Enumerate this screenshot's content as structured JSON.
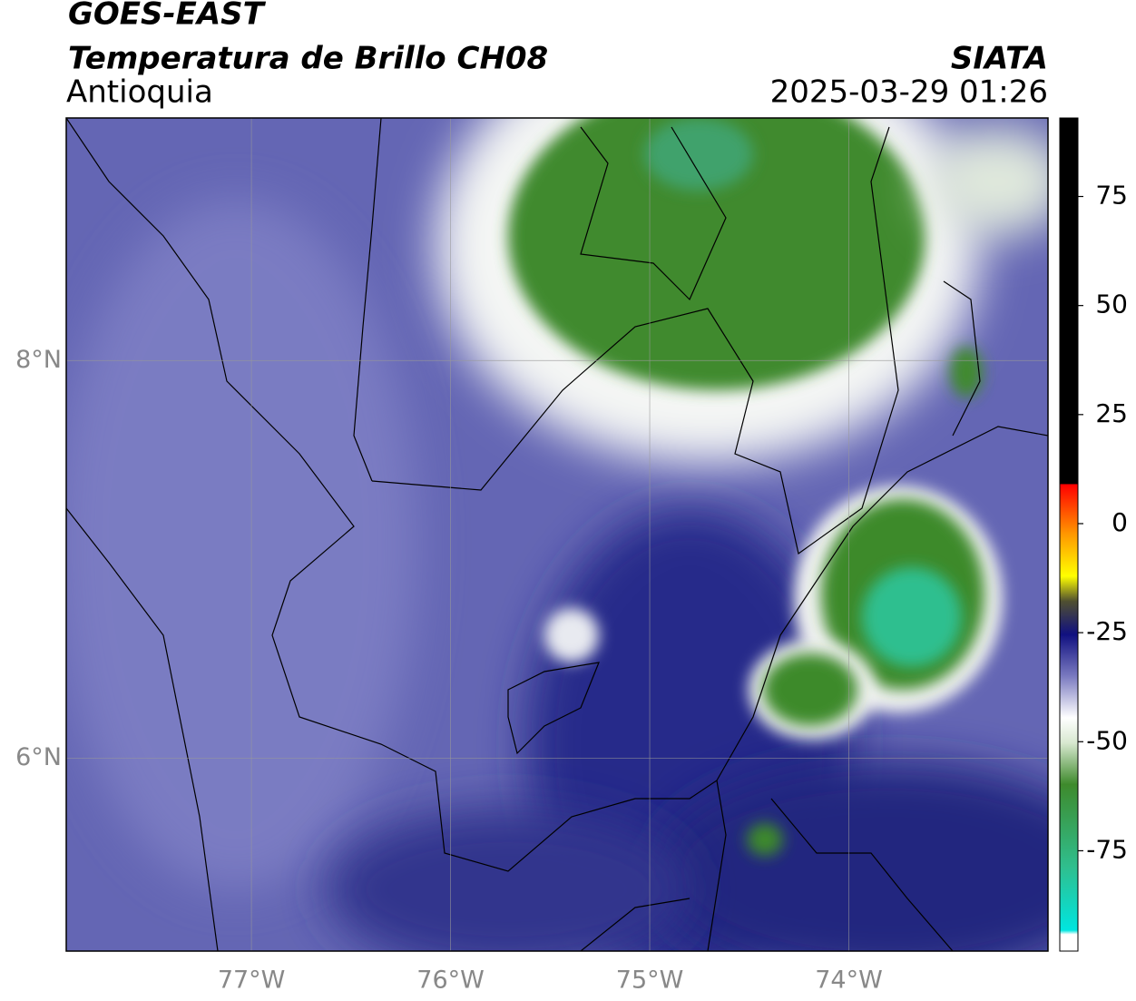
{
  "title": "GOES-EAST",
  "subtitle": "Temperatura de Brillo CH08",
  "region": "Antioquia",
  "source": "SIATA",
  "timestamp": "2025-03-29 01:26",
  "map": {
    "xlim": [
      -77.93,
      -73.0
    ],
    "ylim": [
      5.03,
      9.22
    ],
    "xticks": [
      {
        "value": -77,
        "label": "77°W"
      },
      {
        "value": -76,
        "label": "76°W"
      },
      {
        "value": -75,
        "label": "75°W"
      },
      {
        "value": -74,
        "label": "74°W"
      }
    ],
    "yticks": [
      {
        "value": 8,
        "label": "8°N"
      },
      {
        "value": 6,
        "label": "6°N"
      }
    ],
    "grid": true
  },
  "colorbar": {
    "lim": [
      -98,
      93
    ],
    "ticks": [
      75,
      50,
      25,
      0,
      -25,
      -50,
      -75
    ]
  }
}
